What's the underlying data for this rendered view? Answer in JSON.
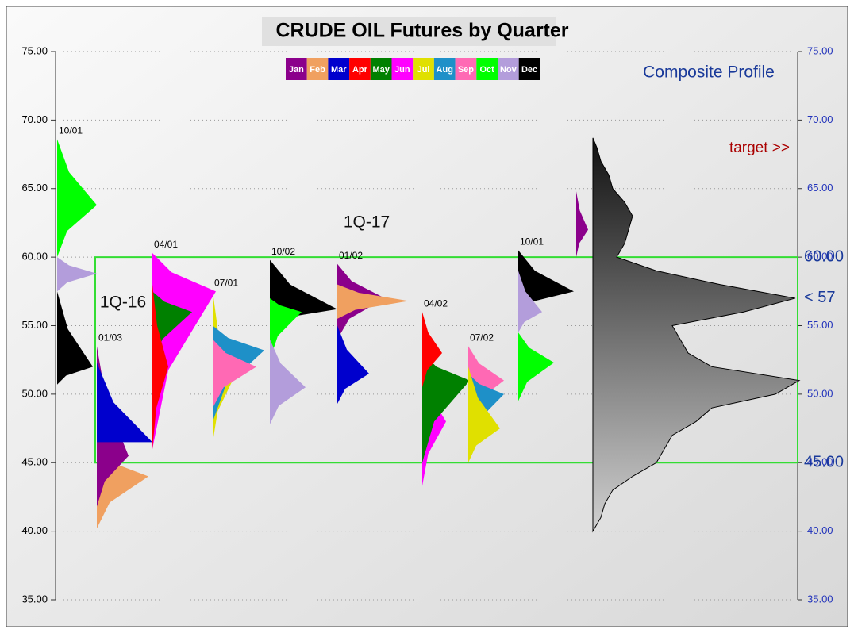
{
  "chart_data": {
    "type": "profile",
    "title": "CRUDE OIL Futures by Quarter",
    "ylim": [
      35,
      75
    ],
    "yticks": [
      {
        "value": 35,
        "label": "35.00"
      },
      {
        "value": 40,
        "label": "40.00"
      },
      {
        "value": 45,
        "label": "45.00"
      },
      {
        "value": 50,
        "label": "50.00"
      },
      {
        "value": 55,
        "label": "55.00"
      },
      {
        "value": 60,
        "label": "60.00"
      },
      {
        "value": 65,
        "label": "65.00"
      },
      {
        "value": 70,
        "label": "70.00"
      },
      {
        "value": 75,
        "label": "75.00"
      }
    ],
    "grid": true,
    "months": [
      {
        "name": "Jan",
        "color": "#8b008b"
      },
      {
        "name": "Feb",
        "color": "#f0a060"
      },
      {
        "name": "Mar",
        "color": "#0000cd"
      },
      {
        "name": "Apr",
        "color": "#ff0000"
      },
      {
        "name": "May",
        "color": "#008000"
      },
      {
        "name": "Jun",
        "color": "#ff00ff"
      },
      {
        "name": "Jul",
        "color": "#e0e000"
      },
      {
        "name": "Aug",
        "color": "#1e90c8"
      },
      {
        "name": "Sep",
        "color": "#ff69b4"
      },
      {
        "name": "Oct",
        "color": "#00ff00"
      },
      {
        "name": "Nov",
        "color": "#b39ddb"
      },
      {
        "name": "Dec",
        "color": "#000000"
      }
    ],
    "profiles": [
      {
        "label": "10/01",
        "segments": [
          {
            "month": 9,
            "low": 60,
            "high": 68.6,
            "peak": 63.8,
            "width": 50
          },
          {
            "month": 10,
            "low": 57.5,
            "high": 60,
            "peak": 58.8,
            "width": 50
          },
          {
            "month": 11,
            "low": 50.7,
            "high": 57.5,
            "peak": 52,
            "width": 45
          }
        ]
      },
      {
        "label": "01/03",
        "segments": [
          {
            "month": 1,
            "low": 40.2,
            "high": 46,
            "peak": 44,
            "width": 65
          },
          {
            "month": 0,
            "low": 41.8,
            "high": 53.5,
            "peak": 45.5,
            "width": 40
          },
          {
            "month": 2,
            "low": 46.5,
            "high": 52.3,
            "peak": 46.5,
            "width": 70
          }
        ]
      },
      {
        "label": "04/01",
        "segments": [
          {
            "month": 5,
            "low": 46,
            "high": 60.3,
            "peak": 57.5,
            "width": 80
          },
          {
            "month": 4,
            "low": 52,
            "high": 57.5,
            "peak": 56,
            "width": 50
          },
          {
            "month": 3,
            "low": 46,
            "high": 58,
            "peak": 52,
            "width": 20
          }
        ]
      },
      {
        "label": "07/01",
        "segments": [
          {
            "month": 6,
            "low": 46.5,
            "high": 57.5,
            "peak": 51,
            "width": 25
          },
          {
            "month": 7,
            "low": 48,
            "high": 55,
            "peak": 53.2,
            "width": 65
          },
          {
            "month": 8,
            "low": 49,
            "high": 54,
            "peak": 52,
            "width": 55
          }
        ]
      },
      {
        "label": "10/02",
        "segments": [
          {
            "month": 11,
            "low": 55,
            "high": 59.8,
            "peak": 56.2,
            "width": 85
          },
          {
            "month": 9,
            "low": 52.5,
            "high": 57,
            "peak": 56,
            "width": 40
          },
          {
            "month": 10,
            "low": 47.8,
            "high": 54,
            "peak": 50.5,
            "width": 45
          }
        ]
      },
      {
        "label": "01/02",
        "segments": [
          {
            "month": 0,
            "low": 54,
            "high": 59.5,
            "peak": 57,
            "width": 60
          },
          {
            "month": 1,
            "low": 55.5,
            "high": 58,
            "peak": 56.8,
            "width": 90
          },
          {
            "month": 2,
            "low": 49.3,
            "high": 55,
            "peak": 51.5,
            "width": 40
          }
        ]
      },
      {
        "label": "04/02",
        "segments": [
          {
            "month": 5,
            "low": 43.3,
            "high": 52,
            "peak": 48,
            "width": 30
          },
          {
            "month": 4,
            "low": 45,
            "high": 53,
            "peak": 51,
            "width": 60
          },
          {
            "month": 3,
            "low": 50.5,
            "high": 56,
            "peak": 53,
            "width": 25
          }
        ]
      },
      {
        "label": "07/02",
        "segments": [
          {
            "month": 8,
            "low": 48,
            "high": 53.5,
            "peak": 51,
            "width": 45
          },
          {
            "month": 7,
            "low": 46,
            "high": 51.5,
            "peak": 50,
            "width": 45
          },
          {
            "month": 6,
            "low": 45,
            "high": 52,
            "peak": 47.5,
            "width": 40
          }
        ]
      },
      {
        "label": "10/01",
        "segments": [
          {
            "month": 11,
            "low": 56,
            "high": 60.5,
            "peak": 57.5,
            "width": 70
          },
          {
            "month": 10,
            "low": 54.5,
            "high": 59,
            "peak": 56,
            "width": 30
          },
          {
            "month": 9,
            "low": 49.5,
            "high": 54.5,
            "peak": 52.3,
            "width": 45
          }
        ]
      },
      {
        "segments": [
          {
            "month": 0,
            "low": 60,
            "high": 64.8,
            "peak": 62,
            "width": 15
          }
        ]
      }
    ],
    "composite": {
      "label": "Composite Profile",
      "prices": [
        40,
        41,
        42,
        43,
        44,
        45,
        46,
        47,
        48,
        49,
        50,
        51,
        52,
        53,
        54,
        55,
        56,
        57,
        58,
        59,
        60,
        61,
        62,
        63,
        64,
        65,
        66,
        67,
        68,
        68.7
      ],
      "widths": [
        0,
        10,
        15,
        25,
        50,
        80,
        90,
        100,
        130,
        150,
        230,
        260,
        150,
        120,
        110,
        100,
        190,
        255,
        160,
        80,
        30,
        40,
        45,
        50,
        40,
        25,
        20,
        10,
        5,
        0
      ]
    },
    "box_ylim": [
      45,
      60
    ],
    "levels": [
      {
        "value": 60,
        "label": "60.00"
      },
      {
        "value": 57,
        "label": "< 57"
      },
      {
        "value": 45,
        "label": "45.00"
      }
    ],
    "annotations": [
      "target >>",
      "1Q-17",
      "1Q-16"
    ]
  }
}
